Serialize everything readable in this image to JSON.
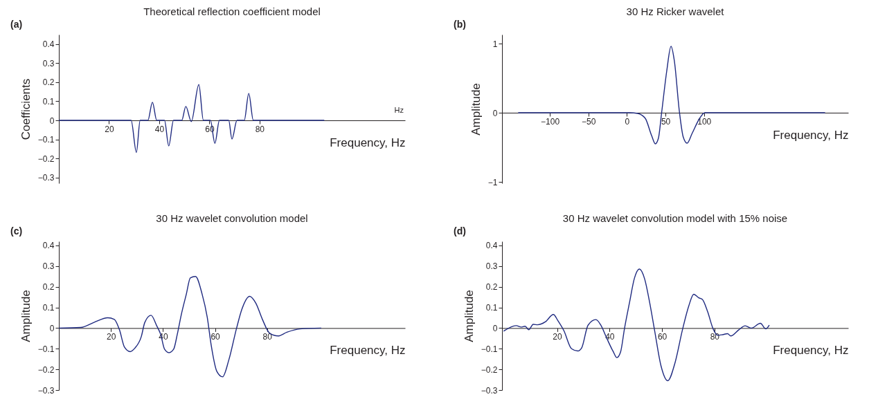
{
  "chart_data": [
    {
      "type": "line",
      "title": "Theoretical reflection coefficient model",
      "xlabel": "Frequency, Hz",
      "ylabel": "Coefficients",
      "annotations": [
        "(a)",
        "Hz"
      ],
      "grid": false,
      "marker": "none",
      "xlim": [
        0,
        138
      ],
      "xticks": [
        20,
        40,
        60,
        80
      ],
      "ylim": [
        -0.33,
        0.45
      ],
      "yticks": [
        {
          "value": -0.3,
          "label": "−0.3"
        },
        {
          "value": -0.2,
          "label": "−0.2"
        },
        {
          "value": -0.1,
          "label": "−0.1"
        },
        0,
        0.1,
        0.2,
        0.3,
        0.4
      ],
      "x": [
        0,
        28.8,
        30.9,
        32.4,
        34,
        35.5,
        37.3,
        39,
        42.1,
        43.8,
        45.7,
        49,
        50.6,
        52.8,
        55.8,
        57.6,
        60.4,
        62.2,
        64,
        67.7,
        69,
        71,
        73.9,
        75.7,
        77.5,
        105.8
      ],
      "series": [
        {
          "color": "#1f2a80",
          "values": [
            0,
            0,
            -0.168,
            0,
            0,
            0,
            0.095,
            0,
            0,
            -0.134,
            0,
            0,
            0.073,
            -0.006,
            0.188,
            0,
            0,
            -0.12,
            0,
            0,
            -0.098,
            0,
            0,
            0.141,
            0,
            0
          ]
        }
      ]
    },
    {
      "type": "line",
      "title": "30 Hz Ricker wavelet",
      "xlabel": "Frequency, Hz",
      "ylabel": "Amplitude",
      "annotations": [
        "(b)"
      ],
      "grid": false,
      "marker": "none",
      "xlim": [
        -162,
        287
      ],
      "xticks": [
        {
          "value": -100,
          "label": "−100"
        },
        {
          "value": -50,
          "label": "−50"
        },
        0,
        50,
        100
      ],
      "ylim": [
        -1.02,
        1.13
      ],
      "yticks": [
        {
          "value": -1,
          "label": "−1"
        },
        0,
        1
      ],
      "x": [
        -141,
        4,
        13.8,
        23.7,
        32,
        36.8,
        40.8,
        45,
        51.6,
        57.2,
        61.5,
        68,
        73,
        78,
        84.5,
        94.4,
        101,
        257
      ],
      "series": [
        {
          "color": "#1f2a80",
          "values": [
            0,
            0,
            -0.01,
            -0.08,
            -0.33,
            -0.45,
            -0.37,
            0,
            0.6,
            0.96,
            0.75,
            0.02,
            -0.35,
            -0.44,
            -0.3,
            -0.08,
            0,
            0
          ]
        }
      ]
    },
    {
      "type": "line",
      "title": "30 Hz wavelet convolution model",
      "xlabel": "Frequency, Hz",
      "ylabel": "Amplitude",
      "annotations": [
        "(c)"
      ],
      "grid": false,
      "marker": "none",
      "xlim": [
        0,
        133
      ],
      "xticks": [
        20,
        40,
        60,
        80
      ],
      "ylim": [
        -0.3,
        0.42
      ],
      "yticks": [
        {
          "value": -0.3,
          "label": "−0.3"
        },
        {
          "value": -0.2,
          "label": "−0.2"
        },
        {
          "value": -0.1,
          "label": "−0.1"
        },
        0,
        0.1,
        0.2,
        0.3,
        0.4
      ],
      "x": [
        0,
        8.4,
        13.4,
        18.8,
        21.3,
        23.3,
        25.2,
        27.4,
        29.2,
        31.7,
        33,
        35.4,
        37.6,
        39.1,
        40.6,
        42.3,
        44.1,
        45.5,
        47,
        49,
        50.5,
        52.5,
        55,
        57,
        58.5,
        60.7,
        62.9,
        65.3,
        68.3,
        70.3,
        73.3,
        75.7,
        78.2,
        81,
        84.2,
        87.6,
        92.6,
        100.8
      ],
      "series": [
        {
          "color": "#1f2a80",
          "values": [
            0,
            0.003,
            0.027,
            0.05,
            0.042,
            -0.009,
            -0.092,
            -0.114,
            -0.097,
            -0.04,
            0.027,
            0.062,
            0.011,
            -0.03,
            -0.102,
            -0.119,
            -0.102,
            -0.03,
            0.063,
            0.166,
            0.243,
            0.25,
            0.166,
            0.053,
            -0.081,
            -0.21,
            -0.236,
            -0.154,
            0.001,
            0.091,
            0.154,
            0.12,
            0.042,
            -0.025,
            -0.038,
            -0.02,
            -0.004,
            0
          ]
        }
      ]
    },
    {
      "type": "line",
      "title": "30 Hz wavelet convolution model with 15% noise",
      "xlabel": "Frequency, Hz",
      "ylabel": "Amplitude",
      "annotations": [
        "(d)"
      ],
      "grid": false,
      "marker": "none",
      "xlim": [
        -1,
        131
      ],
      "xticks": [
        20,
        40,
        60,
        80
      ],
      "ylim": [
        -0.3,
        0.42
      ],
      "yticks": [
        {
          "value": -0.3,
          "label": "−0.3"
        },
        {
          "value": -0.2,
          "label": "−0.2"
        },
        {
          "value": -0.1,
          "label": "−0.1"
        },
        0,
        0.1,
        0.2,
        0.3,
        0.4
      ],
      "x": [
        -0.4,
        4.4,
        6.3,
        7.8,
        9.2,
        10.9,
        12.6,
        15.5,
        18.6,
        20.3,
        22.6,
        25.5,
        27.9,
        29.4,
        31.8,
        34.8,
        36.6,
        39,
        41.4,
        42.8,
        44.2,
        45.7,
        47.6,
        49.5,
        51.4,
        53.4,
        55.3,
        57.2,
        59.6,
        62.2,
        64.9,
        67.8,
        70.2,
        72.1,
        74,
        75.4,
        77.4,
        79.5,
        81.2,
        83.1,
        85,
        86.2,
        89.3,
        91.7,
        94.1,
        97.5,
        99.6,
        100.9
      ],
      "series": [
        {
          "color": "#1f2a80",
          "values": [
            -0.015,
            0.012,
            0.005,
            0.009,
            -0.008,
            0.018,
            0.016,
            0.03,
            0.066,
            0.036,
            -0.013,
            -0.1,
            -0.111,
            -0.095,
            0.014,
            0.041,
            0.016,
            -0.051,
            -0.114,
            -0.143,
            -0.116,
            -0.002,
            0.123,
            0.242,
            0.286,
            0.237,
            0.123,
            -0.013,
            -0.182,
            -0.255,
            -0.171,
            -0.008,
            0.107,
            0.164,
            0.147,
            0.139,
            0.079,
            -0.004,
            -0.035,
            -0.032,
            -0.027,
            -0.038,
            -0.008,
            0.011,
            0,
            0.023,
            -0.004,
            0.014
          ]
        }
      ]
    }
  ]
}
